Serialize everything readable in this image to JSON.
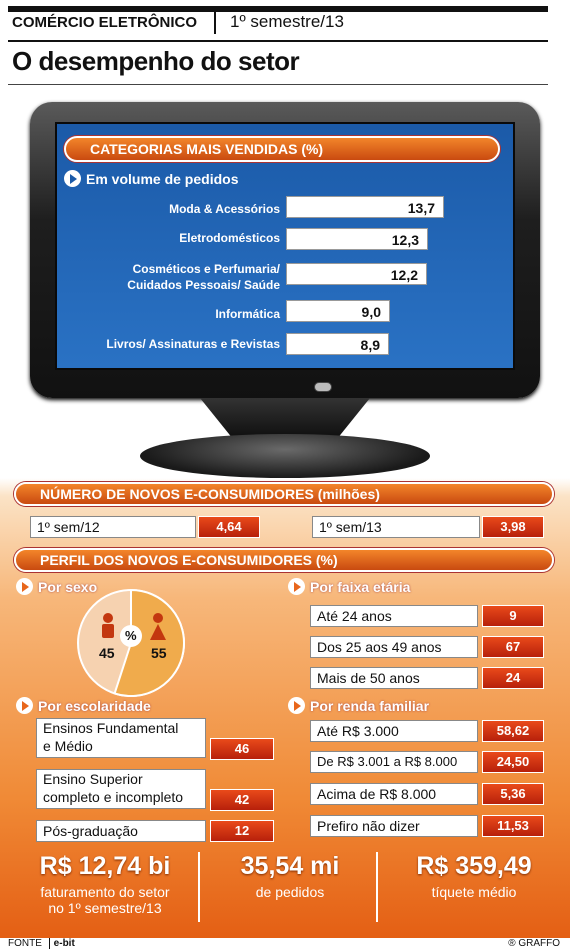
{
  "header": {
    "tag": "COMÉRCIO ELETRÔNICO",
    "period": "1º semestre/13",
    "title": "O desempenho do setor"
  },
  "categories": {
    "heading": "CATEGORIAS MAIS VENDIDAS (%)",
    "subheading": "Em volume de pedidos",
    "labels": [
      "Moda & Acessórios",
      "Eletrodomésticos",
      "Cosméticos e Perfumaria/",
      "Cuidados Pessoais/ Saúde",
      "Informática",
      "Livros/ Assinaturas e Revistas"
    ],
    "values": [
      "13,7",
      "12,3",
      "12,2",
      "9,0",
      "8,9"
    ]
  },
  "chart_data": {
    "type": "bar",
    "title": "CATEGORIAS MAIS VENDIDAS (%)",
    "categories": [
      "Moda & Acessórios",
      "Eletrodomésticos",
      "Cosméticos e Perfumaria/ Cuidados Pessoais/ Saúde",
      "Informática",
      "Livros/ Assinaturas e Revistas"
    ],
    "values": [
      13.7,
      12.3,
      12.2,
      9.0,
      8.9
    ]
  },
  "new_consumers": {
    "heading": "NÚMERO DE NOVOS E-CONSUMIDORES (milhões)",
    "items": [
      {
        "label": "1º sem/12",
        "value": "4,64"
      },
      {
        "label": "1º sem/13",
        "value": "3,98"
      }
    ]
  },
  "profile": {
    "heading": "PERFIL DOS NOVOS E-CONSUMIDORES (%)",
    "sex": {
      "title": "Por sexo",
      "symbol": "%",
      "male": "45",
      "female": "55"
    },
    "age": {
      "title": "Por faixa etária",
      "rows": [
        {
          "label": "Até 24 anos",
          "value": "9"
        },
        {
          "label": "Dos 25 aos 49 anos",
          "value": "67"
        },
        {
          "label": "Mais de 50 anos",
          "value": "24"
        }
      ]
    },
    "education": {
      "title": "Por escolaridade",
      "rows": [
        {
          "l1": "Ensinos Fundamental",
          "l2": "e Médio",
          "value": "46"
        },
        {
          "l1": "Ensino Superior",
          "l2": "completo e incompleto",
          "value": "42"
        },
        {
          "l1": "Pós-graduação",
          "l2": "",
          "value": "12"
        }
      ]
    },
    "income": {
      "title": "Por renda familiar",
      "rows": [
        {
          "label": "Até R$ 3.000",
          "value": "58,62"
        },
        {
          "label": "De R$ 3.001 a R$ 8.000",
          "value": "24,50"
        },
        {
          "label": "Acima de R$ 8.000",
          "value": "5,36"
        },
        {
          "label": "Prefiro não dizer",
          "value": "11,53"
        }
      ]
    }
  },
  "highlights": [
    {
      "big": "R$ 12,74 bi",
      "cap1": "faturamento do setor",
      "cap2": "no 1º semestre/13"
    },
    {
      "big": "35,54 mi",
      "cap1": "de pedidos",
      "cap2": ""
    },
    {
      "big": "R$ 359,49",
      "cap1": "tíquete médio",
      "cap2": ""
    }
  ],
  "footer": {
    "fonte": "FONTE",
    "source": "e-bit",
    "credit": "® GRAFFO"
  },
  "colors": {
    "screen_blue": "#1b5aa8",
    "accent_orange": "#e8661c",
    "value_red": "#c0260e"
  }
}
